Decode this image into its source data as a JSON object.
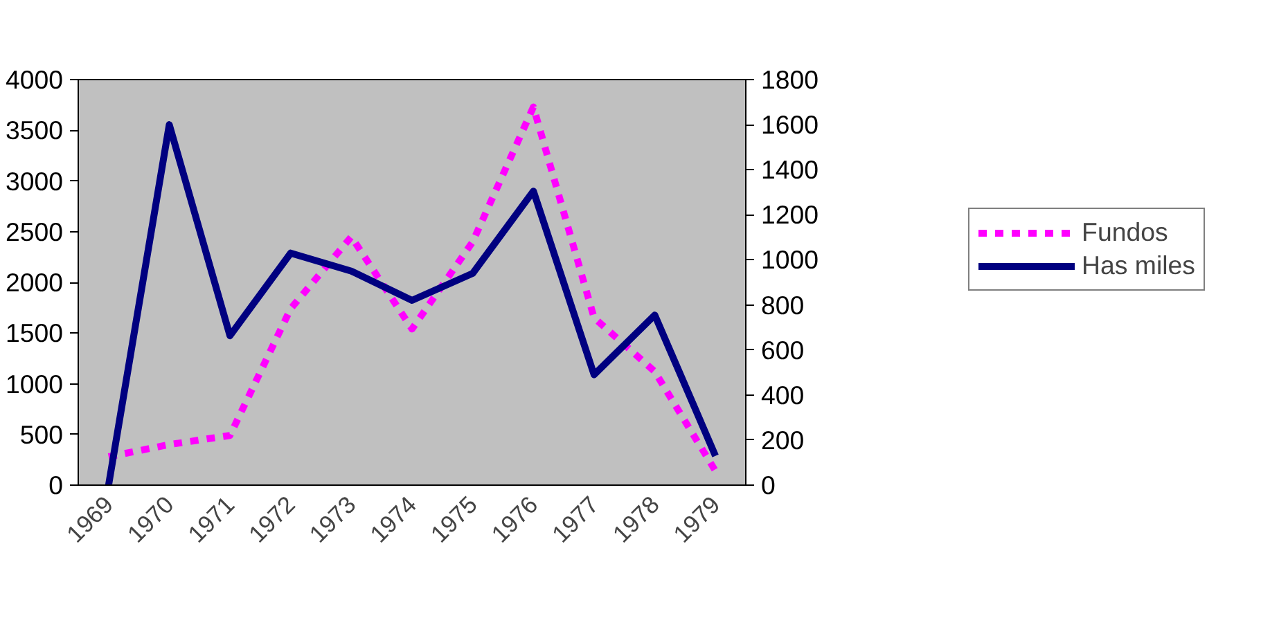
{
  "chart_data": {
    "type": "line",
    "categories": [
      "1969",
      "1970",
      "1971",
      "1972",
      "1973",
      "1974",
      "1975",
      "1976",
      "1977",
      "1978",
      "1979"
    ],
    "series": [
      {
        "name": "Fundos",
        "color": "#ff00ff",
        "line_style": "dashed",
        "values": [
          280,
          400,
          490,
          1740,
          2450,
          1540,
          2400,
          3730,
          1650,
          1120,
          140
        ]
      },
      {
        "name": "Has miles",
        "color": "#000080",
        "line_style": "solid",
        "axis": "y2",
        "values": [
          0,
          1600,
          663,
          1030,
          950,
          820,
          940,
          1305,
          490,
          755,
          130
        ]
      }
    ],
    "ylim": [
      0,
      4000
    ],
    "yticks": [
      0,
      500,
      1000,
      1500,
      2000,
      2500,
      3000,
      3500,
      4000
    ],
    "y2lim": [
      0,
      1800
    ],
    "y2ticks": [
      0,
      200,
      400,
      600,
      800,
      1000,
      1200,
      1400,
      1600,
      1800
    ],
    "grid": false,
    "legend": "right"
  }
}
